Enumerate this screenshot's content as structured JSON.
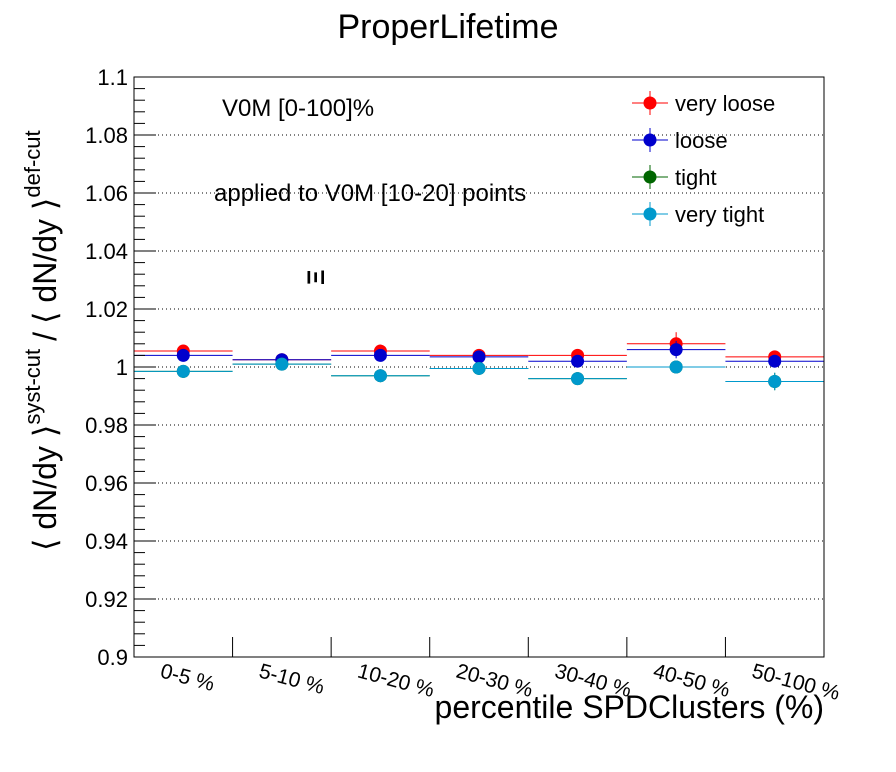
{
  "chart_data": {
    "type": "scatter",
    "title": "ProperLifetime",
    "xlabel": "percentile SPDClusters (%)",
    "ylabel_parts": {
      "num": "⟨ dN/dy ⟩",
      "num_sup": "syst-cut",
      "sep": "/",
      "den": "⟨ dN/dy ⟩",
      "den_sup": "def-cut"
    },
    "ylim": [
      0.9,
      1.1
    ],
    "yticks": [
      "0.9",
      "0.92",
      "0.94",
      "0.96",
      "0.98",
      "1",
      "1.02",
      "1.04",
      "1.06",
      "1.08",
      "1.1"
    ],
    "categories": [
      "0-5 %",
      "5-10 %",
      "10-20 %",
      "20-30 %",
      "30-40 %",
      "40-50 %",
      "50-100 %"
    ],
    "grid": "horizontal-dotted",
    "legend_position": "top-right",
    "annotations": {
      "centrality": "V0M [0-100]%",
      "applied": "applied to V0M [10-20] points",
      "particle": "Ξ"
    },
    "series": [
      {
        "name": "very loose",
        "color": "#ff0000",
        "values": [
          1.0055,
          1.0025,
          1.0055,
          1.004,
          1.004,
          1.008,
          1.0035
        ],
        "errors": [
          0.0015,
          0.0012,
          0.0015,
          0.0015,
          0.002,
          0.004,
          0.0015
        ]
      },
      {
        "name": "loose",
        "color": "#0000cc",
        "values": [
          1.004,
          1.0025,
          1.004,
          1.0035,
          1.002,
          1.006,
          1.002
        ],
        "errors": [
          0.0015,
          0.0012,
          0.0015,
          0.0015,
          0.002,
          0.003,
          0.0015
        ]
      },
      {
        "name": "tight",
        "color": "#006600",
        "values": [
          0.9985,
          1.001,
          0.997,
          0.9995,
          0.996,
          1.0,
          0.995
        ],
        "errors": [
          0.0015,
          0.0012,
          0.0015,
          0.0015,
          0.0015,
          0.002,
          0.003
        ]
      },
      {
        "name": "very tight",
        "color": "#0099cc",
        "values": [
          0.9985,
          1.001,
          0.997,
          0.9995,
          0.996,
          1.0,
          0.995
        ],
        "errors": [
          0.0015,
          0.0012,
          0.0015,
          0.0015,
          0.0015,
          0.002,
          0.003
        ]
      }
    ]
  }
}
